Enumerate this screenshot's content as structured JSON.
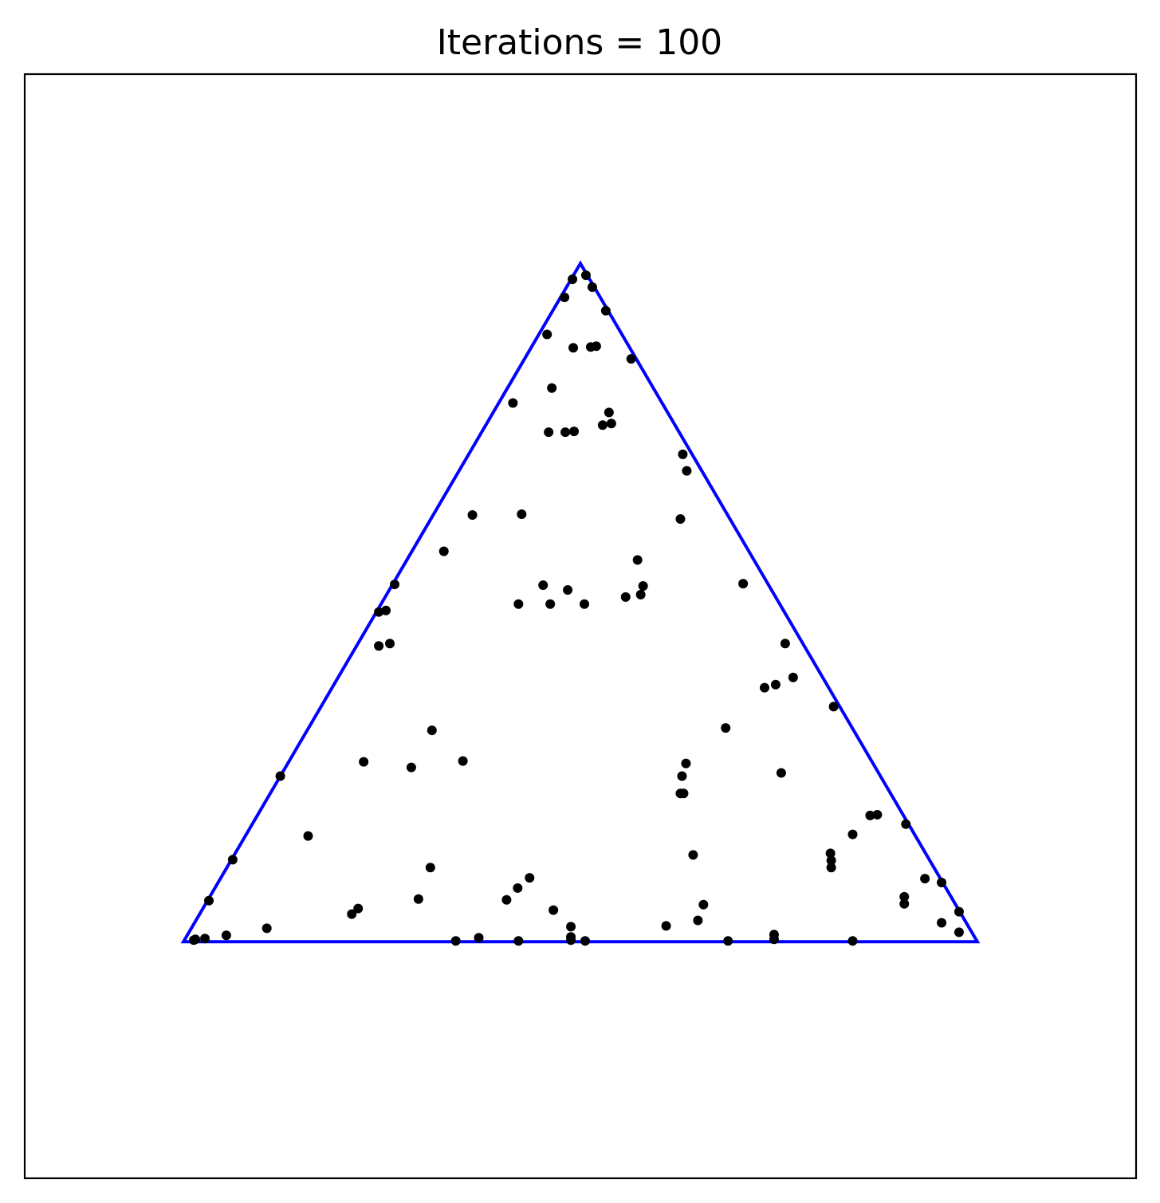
{
  "chart_data": {
    "type": "scatter",
    "title": "Iterations = 100",
    "xlabel": "",
    "ylabel": "",
    "xlim": [
      0,
      1.4
    ],
    "ylim": [
      0,
      1.4
    ],
    "grid": false,
    "axis_ticks": false,
    "colors": {
      "triangle": "#0000ff",
      "points": "#000000",
      "frame": "#000000"
    },
    "triangle": {
      "vertices": [
        [
          0.2,
          0.3
        ],
        [
          1.2,
          0.3
        ],
        [
          0.7,
          1.16
        ]
      ]
    },
    "points": [
      [
        0.69,
        1.14
      ],
      [
        0.707,
        1.145
      ],
      [
        0.715,
        1.13
      ],
      [
        0.68,
        1.117
      ],
      [
        0.732,
        1.1
      ],
      [
        0.658,
        1.07
      ],
      [
        0.691,
        1.053
      ],
      [
        0.713,
        1.054
      ],
      [
        0.72,
        1.055
      ],
      [
        0.764,
        1.039
      ],
      [
        0.664,
        1.002
      ],
      [
        0.615,
        0.983
      ],
      [
        0.736,
        0.971
      ],
      [
        0.728,
        0.955
      ],
      [
        0.739,
        0.957
      ],
      [
        0.692,
        0.947
      ],
      [
        0.66,
        0.946
      ],
      [
        0.681,
        0.946
      ],
      [
        0.829,
        0.918
      ],
      [
        0.834,
        0.897
      ],
      [
        0.826,
        0.836
      ],
      [
        0.564,
        0.841
      ],
      [
        0.626,
        0.842
      ],
      [
        0.528,
        0.795
      ],
      [
        0.772,
        0.784
      ],
      [
        0.466,
        0.753
      ],
      [
        0.653,
        0.752
      ],
      [
        0.684,
        0.746
      ],
      [
        0.779,
        0.751
      ],
      [
        0.776,
        0.74
      ],
      [
        0.757,
        0.737
      ],
      [
        0.622,
        0.728
      ],
      [
        0.662,
        0.728
      ],
      [
        0.705,
        0.728
      ],
      [
        0.905,
        0.754
      ],
      [
        0.446,
        0.718
      ],
      [
        0.455,
        0.72
      ],
      [
        0.446,
        0.675
      ],
      [
        0.46,
        0.678
      ],
      [
        0.958,
        0.678
      ],
      [
        0.932,
        0.622
      ],
      [
        0.946,
        0.626
      ],
      [
        0.968,
        0.635
      ],
      [
        1.019,
        0.598
      ],
      [
        0.883,
        0.571
      ],
      [
        0.513,
        0.568
      ],
      [
        0.552,
        0.529
      ],
      [
        0.833,
        0.526
      ],
      [
        0.427,
        0.528
      ],
      [
        0.487,
        0.521
      ],
      [
        0.828,
        0.51
      ],
      [
        0.953,
        0.514
      ],
      [
        0.322,
        0.51
      ],
      [
        0.826,
        0.488
      ],
      [
        0.83,
        0.488
      ],
      [
        1.065,
        0.46
      ],
      [
        1.074,
        0.461
      ],
      [
        1.11,
        0.449
      ],
      [
        0.357,
        0.434
      ],
      [
        1.043,
        0.436
      ],
      [
        0.842,
        0.41
      ],
      [
        1.015,
        0.412
      ],
      [
        1.016,
        0.403
      ],
      [
        1.016,
        0.394
      ],
      [
        0.262,
        0.404
      ],
      [
        0.511,
        0.394
      ],
      [
        0.636,
        0.381
      ],
      [
        1.134,
        0.38
      ],
      [
        1.155,
        0.375
      ],
      [
        0.621,
        0.368
      ],
      [
        0.607,
        0.353
      ],
      [
        0.496,
        0.354
      ],
      [
        0.232,
        0.352
      ],
      [
        0.855,
        0.347
      ],
      [
        1.108,
        0.357
      ],
      [
        1.108,
        0.348
      ],
      [
        0.42,
        0.342
      ],
      [
        0.412,
        0.335
      ],
      [
        0.666,
        0.34
      ],
      [
        1.177,
        0.338
      ],
      [
        0.848,
        0.327
      ],
      [
        1.155,
        0.324
      ],
      [
        0.688,
        0.319
      ],
      [
        0.808,
        0.32
      ],
      [
        0.305,
        0.317
      ],
      [
        1.177,
        0.312
      ],
      [
        0.254,
        0.308
      ],
      [
        0.688,
        0.306
      ],
      [
        0.944,
        0.309
      ],
      [
        0.227,
        0.304
      ],
      [
        0.215,
        0.303
      ],
      [
        0.572,
        0.305
      ],
      [
        0.543,
        0.301
      ],
      [
        0.622,
        0.301
      ],
      [
        0.706,
        0.301
      ],
      [
        0.688,
        0.302
      ],
      [
        0.886,
        0.301
      ],
      [
        0.944,
        0.303
      ],
      [
        1.043,
        0.301
      ],
      [
        0.213,
        0.302
      ]
    ]
  }
}
